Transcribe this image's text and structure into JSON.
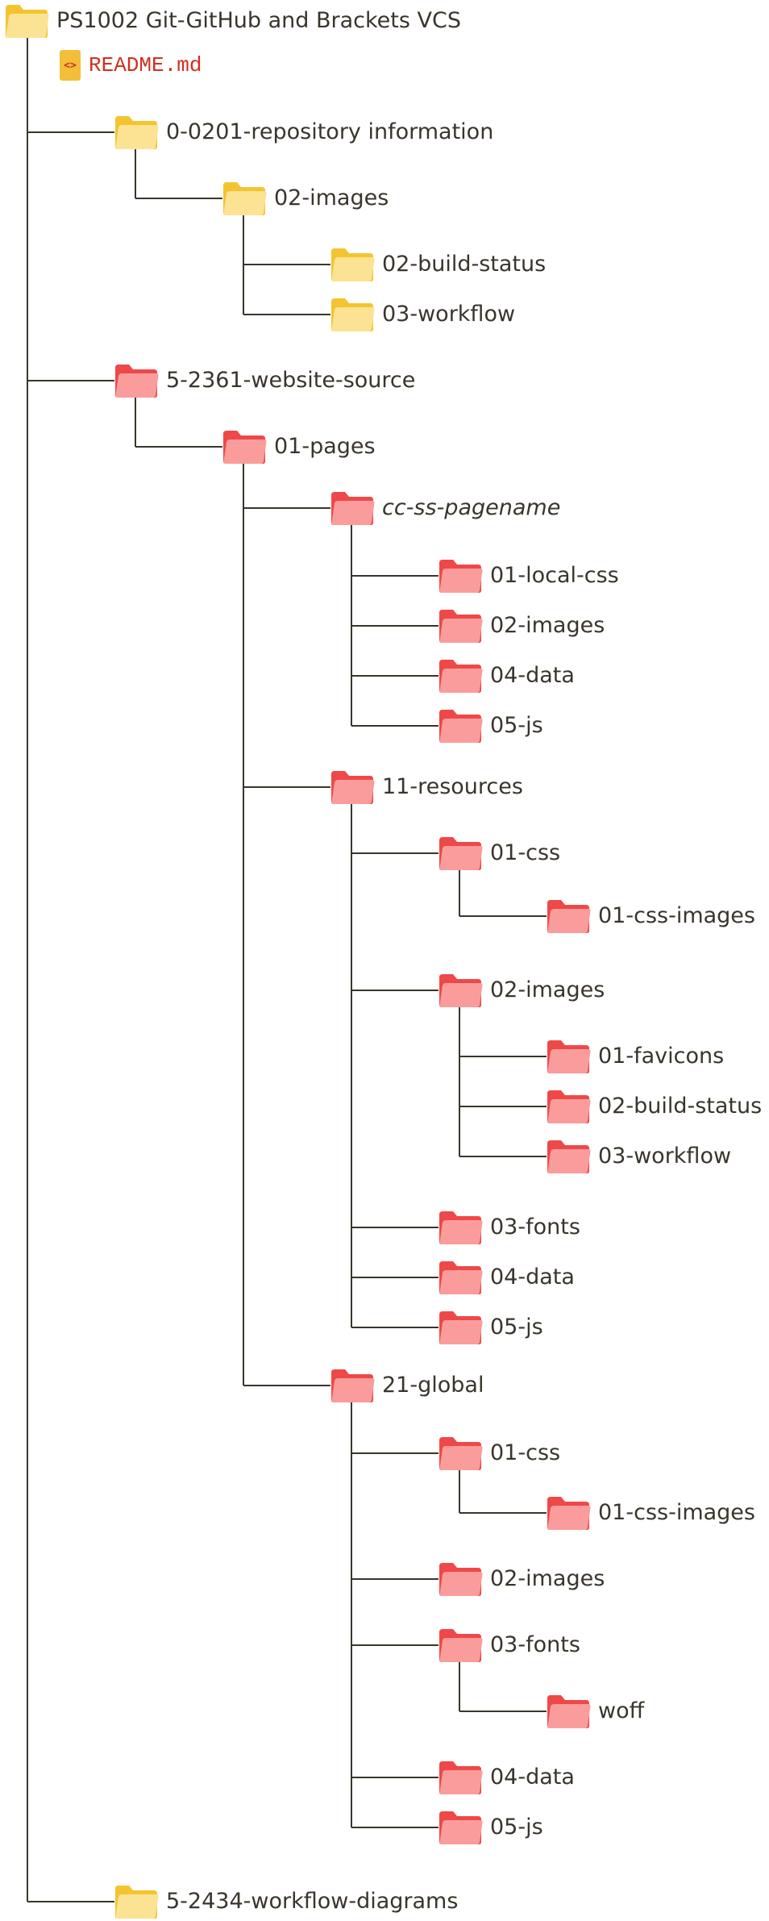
{
  "colors": {
    "yellow_back": "#f4c430",
    "yellow_front": "#fce394",
    "red_back": "#ef4848",
    "red_front": "#fb9c9c",
    "line": "#3a352c",
    "readme_text": "#d0301f"
  },
  "readme": {
    "label": "README.md",
    "icon": "code-file-icon",
    "glyph": "<>"
  },
  "tree": {
    "label": "PS1002 Git-GitHub and Brackets VCS",
    "color": "yellow",
    "children": [
      {
        "label": "0-0201-repository information",
        "color": "yellow",
        "children": [
          {
            "label": "02-images",
            "color": "yellow",
            "children": [
              {
                "label": "02-build-status",
                "color": "yellow"
              },
              {
                "label": "03-workflow",
                "color": "yellow"
              }
            ]
          }
        ]
      },
      {
        "label": "5-2361-website-source",
        "color": "red",
        "children": [
          {
            "label": "01-pages",
            "color": "red",
            "children": [
              {
                "label": "cc-ss-pagename",
                "color": "red",
                "italic": true,
                "children": [
                  {
                    "label": "01-local-css",
                    "color": "red"
                  },
                  {
                    "label": "02-images",
                    "color": "red"
                  },
                  {
                    "label": "04-data",
                    "color": "red"
                  },
                  {
                    "label": "05-js",
                    "color": "red"
                  }
                ]
              },
              {
                "label": "11-resources",
                "color": "red",
                "children": [
                  {
                    "label": "01-css",
                    "color": "red",
                    "children": [
                      {
                        "label": "01-css-images",
                        "color": "red"
                      }
                    ]
                  },
                  {
                    "label": "02-images",
                    "color": "red",
                    "children": [
                      {
                        "label": "01-favicons",
                        "color": "red"
                      },
                      {
                        "label": "02-build-status",
                        "color": "red"
                      },
                      {
                        "label": "03-workflow",
                        "color": "red"
                      }
                    ]
                  },
                  {
                    "label": "03-fonts",
                    "color": "red"
                  },
                  {
                    "label": "04-data",
                    "color": "red"
                  },
                  {
                    "label": "05-js",
                    "color": "red"
                  }
                ]
              },
              {
                "label": "21-global",
                "color": "red",
                "children": [
                  {
                    "label": "01-css",
                    "color": "red",
                    "children": [
                      {
                        "label": "01-css-images",
                        "color": "red"
                      }
                    ]
                  },
                  {
                    "label": "02-images",
                    "color": "red"
                  },
                  {
                    "label": "03-fonts",
                    "color": "red",
                    "children": [
                      {
                        "label": "woff",
                        "color": "red"
                      }
                    ]
                  },
                  {
                    "label": "04-data",
                    "color": "red"
                  },
                  {
                    "label": "05-js",
                    "color": "red"
                  }
                ]
              }
            ]
          }
        ]
      },
      {
        "label": "5-2434-workflow-diagrams",
        "color": "yellow"
      }
    ]
  }
}
